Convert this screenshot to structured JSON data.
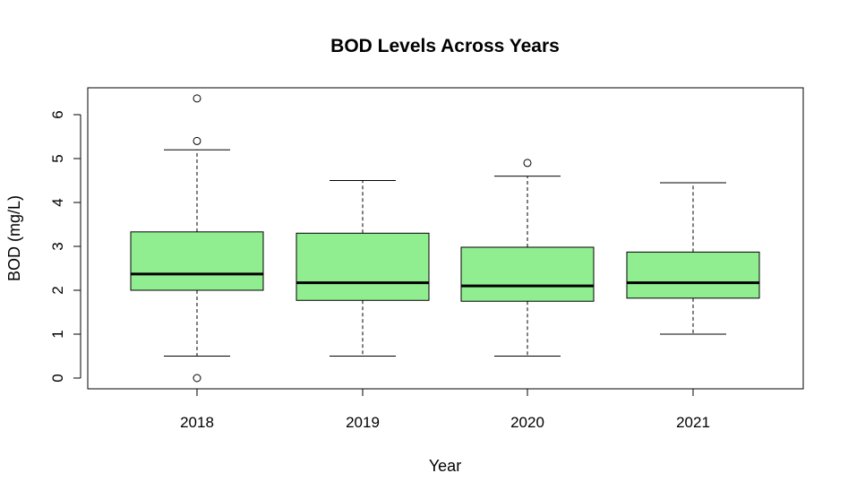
{
  "chart_data": {
    "type": "boxplot",
    "title": "BOD Levels Across Years",
    "xlabel": "Year",
    "ylabel": "BOD (mg/L)",
    "categories": [
      "2018",
      "2019",
      "2020",
      "2021"
    ],
    "y_ticks": [
      "0",
      "1",
      "2",
      "3",
      "4",
      "5",
      "6"
    ],
    "ylim": [
      -0.25,
      6.6
    ],
    "grid": false,
    "box_color": "#90EE90",
    "boxes": [
      {
        "category": "2018",
        "whisker_low": 0.5,
        "q1": 2.0,
        "median": 2.37,
        "q3": 3.33,
        "whisker_high": 5.2,
        "outliers": [
          6.37,
          5.4,
          0.0
        ]
      },
      {
        "category": "2019",
        "whisker_low": 0.5,
        "q1": 1.77,
        "median": 2.17,
        "q3": 3.3,
        "whisker_high": 4.5,
        "outliers": []
      },
      {
        "category": "2020",
        "whisker_low": 0.5,
        "q1": 1.75,
        "median": 2.1,
        "q3": 2.98,
        "whisker_high": 4.6,
        "outliers": [
          4.9
        ]
      },
      {
        "category": "2021",
        "whisker_low": 1.0,
        "q1": 1.82,
        "median": 2.17,
        "q3": 2.87,
        "whisker_high": 4.45,
        "outliers": []
      }
    ]
  }
}
